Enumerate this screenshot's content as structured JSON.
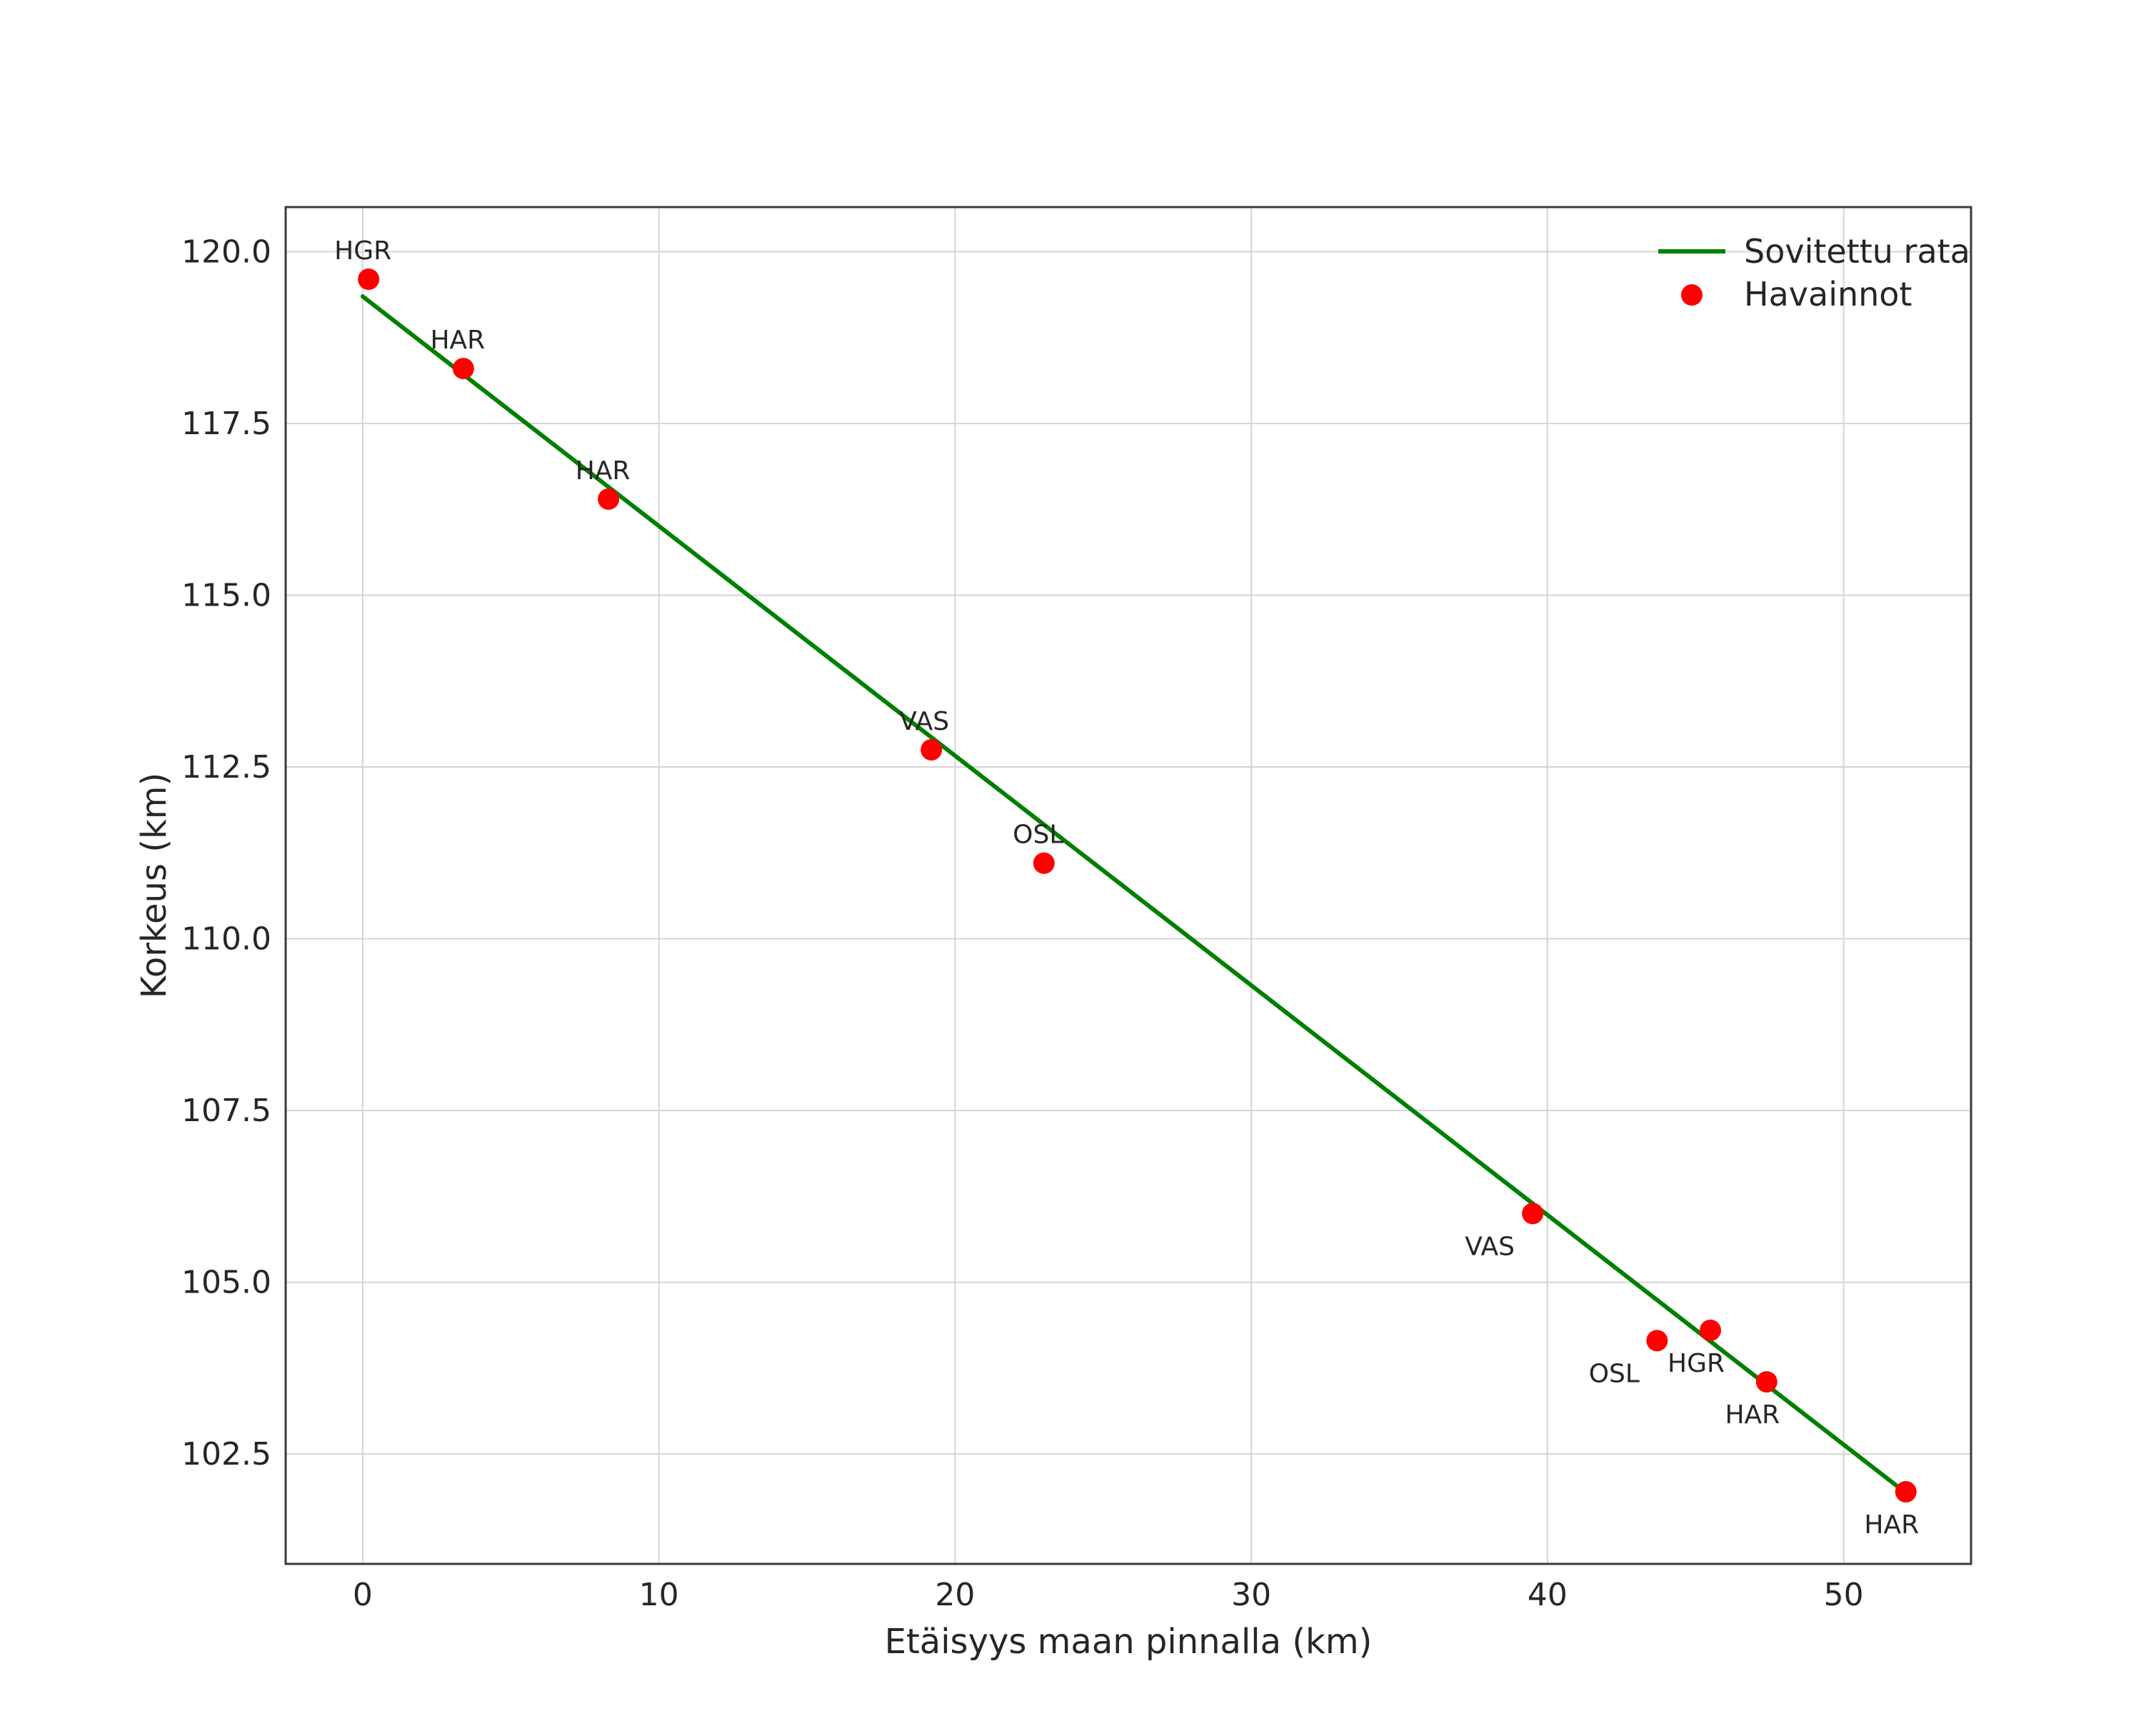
{
  "chart_data": {
    "type": "scatter",
    "title": "",
    "xlabel": "Etäisyys maan pinnalla (km)",
    "ylabel": "Korkeus (km)",
    "xlim": [
      -2.6,
      54.3
    ],
    "ylim": [
      100.9,
      120.65
    ],
    "grid": true,
    "x_ticks": {
      "values": [
        0,
        10,
        20,
        30,
        40,
        50
      ],
      "labels": [
        "0",
        "10",
        "20",
        "30",
        "40",
        "50"
      ]
    },
    "y_ticks": {
      "values": [
        102.5,
        105.0,
        107.5,
        110.0,
        112.5,
        115.0,
        117.5,
        120.0
      ],
      "labels": [
        "102.5",
        "105.0",
        "107.5",
        "110.0",
        "112.5",
        "115.0",
        "117.5",
        "120.0"
      ]
    },
    "legend": {
      "position": "upper-right",
      "entries": [
        {
          "label": "Sovitettu rata",
          "type": "line",
          "color": "#008000"
        },
        {
          "label": "Havainnot",
          "type": "marker",
          "color": "#ff0000"
        }
      ]
    },
    "fit_line": {
      "name": "Sovitettu rata",
      "color": "#008000",
      "x": [
        0.0,
        52.2
      ],
      "y": [
        119.35,
        101.9
      ]
    },
    "points": {
      "name": "Havainnot",
      "color": "#ff0000",
      "data": [
        {
          "label": "HGR",
          "x": 0.2,
          "y": 119.6,
          "label_pos": "above",
          "dx": -8
        },
        {
          "label": "HAR",
          "x": 3.4,
          "y": 118.3,
          "label_pos": "above",
          "dx": -8
        },
        {
          "label": "HAR",
          "x": 8.3,
          "y": 116.4,
          "label_pos": "above",
          "dx": -8
        },
        {
          "label": "VAS",
          "x": 19.2,
          "y": 112.75,
          "label_pos": "above",
          "dx": -10
        },
        {
          "label": "OSL",
          "x": 23.0,
          "y": 111.1,
          "label_pos": "above",
          "dx": -8
        },
        {
          "label": "VAS",
          "x": 39.5,
          "y": 106.0,
          "label_pos": "below",
          "dx": -60
        },
        {
          "label": "OSL",
          "x": 43.7,
          "y": 104.15,
          "label_pos": "below",
          "dx": -60
        },
        {
          "label": "HGR",
          "x": 45.5,
          "y": 104.3,
          "label_pos": "below",
          "dx": -20
        },
        {
          "label": "HAR",
          "x": 47.4,
          "y": 103.55,
          "label_pos": "below",
          "dx": -20
        },
        {
          "label": "HAR",
          "x": 52.1,
          "y": 101.95,
          "label_pos": "below",
          "dx": -20
        }
      ]
    },
    "style": {
      "grid_color": "#d4d4d4",
      "border_color": "#3a3a3a",
      "background": "#ffffff",
      "text_color": "#262626"
    }
  }
}
